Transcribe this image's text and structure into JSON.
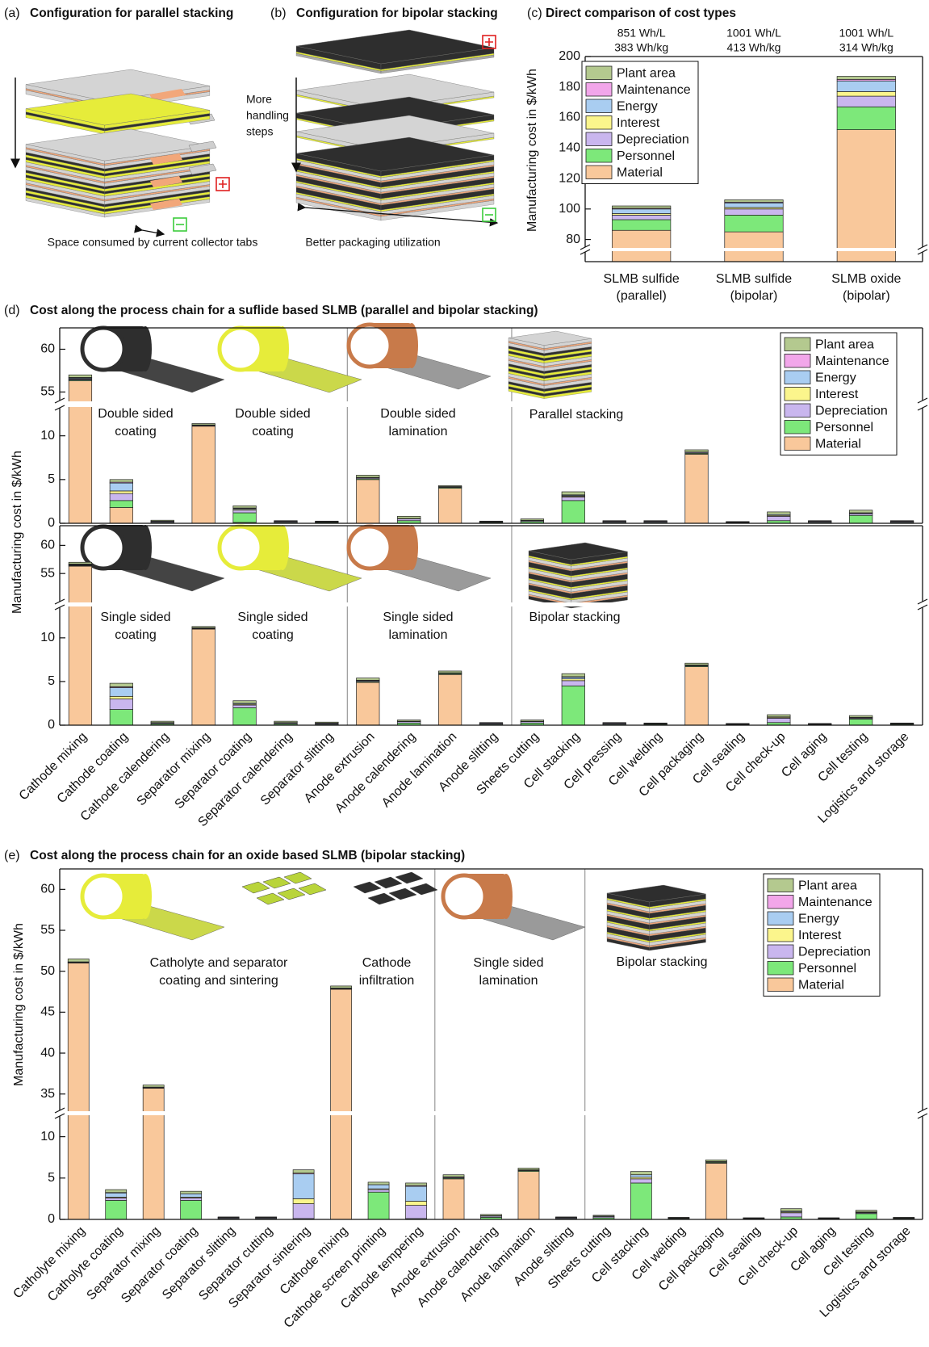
{
  "panel_a": {
    "label": "(a)",
    "title": "Configuration for parallel stacking",
    "caption": "Space consumed by current collector tabs"
  },
  "panel_b": {
    "label": "(b)",
    "title": "Configuration for bipolar stacking",
    "note": [
      "More",
      "handling",
      "steps"
    ],
    "caption": "Better packaging utilization"
  },
  "chart_data": [
    {
      "type": "bar",
      "stacked": true,
      "label": "(c)",
      "title": "Direct comparison of cost types",
      "ylabel": "Manufacturing cost in $/kWh",
      "categories": [
        [
          "SLMB sulfide",
          "(parallel)"
        ],
        [
          "SLMB sulfide",
          "(bipolar)"
        ],
        [
          "SLMB oxide",
          "(bipolar)"
        ]
      ],
      "annotations": [
        [
          "851 Wh/L",
          "383 Wh/kg"
        ],
        [
          "1001 Wh/L",
          "413 Wh/kg"
        ],
        [
          "1001 Wh/L",
          "314 Wh/kg"
        ]
      ],
      "axis_segments": [
        {
          "ylim": [
            0,
            5
          ],
          "yticks": []
        },
        {
          "ylim": [
            75,
            200
          ],
          "yticks": [
            80,
            100,
            120,
            140,
            160,
            180,
            200
          ]
        }
      ],
      "legend": "upper left",
      "series": [
        {
          "name": "Material",
          "color": "#f9c89b",
          "values": [
            86,
            85,
            152
          ]
        },
        {
          "name": "Personnel",
          "color": "#7de87a",
          "values": [
            7,
            11,
            15
          ]
        },
        {
          "name": "Depreciation",
          "color": "#c9b6ee",
          "values": [
            3,
            4,
            7
          ]
        },
        {
          "name": "Interest",
          "color": "#fbf58c",
          "values": [
            1,
            1,
            3
          ]
        },
        {
          "name": "Energy",
          "color": "#a9cdf1",
          "values": [
            3,
            3,
            7
          ]
        },
        {
          "name": "Maintenance",
          "color": "#f2a6ea",
          "values": [
            0.5,
            0.5,
            1
          ]
        },
        {
          "name": "Plant area",
          "color": "#b4c98f",
          "values": [
            1.5,
            1.5,
            2
          ]
        }
      ]
    },
    {
      "type": "bar",
      "stacked": true,
      "label": "(d)",
      "title": "Cost along the process chain for a suflide based SLMB (parallel and bipolar stacking)",
      "ylabel": "Manufacturing cost in $/kWh",
      "axis_segments": [
        {
          "ylim": [
            0,
            13.2
          ],
          "yticks": [
            0,
            5,
            10
          ]
        },
        {
          "ylim": [
            54,
            62.5
          ],
          "yticks": [
            55,
            60
          ]
        }
      ],
      "legend": "upper right",
      "group_boundaries": [
        7,
        11
      ],
      "insets": [
        [
          "Double sided",
          "coating"
        ],
        [
          "Double sided",
          "coating"
        ],
        [
          "Double sided",
          "lamination"
        ],
        [
          "Parallel stacking"
        ]
      ],
      "series": [
        {
          "name": "Material",
          "color": "#f9c89b",
          "values": [
            56.3,
            1.8,
            0,
            11.1,
            0.1,
            0,
            0,
            5.0,
            0,
            4.0,
            0,
            0,
            0,
            0,
            0,
            7.9,
            0,
            0,
            0,
            0,
            0
          ]
        },
        {
          "name": "Personnel",
          "color": "#7de87a",
          "values": [
            0.1,
            0.8,
            0.1,
            0.05,
            1.1,
            0.1,
            0.1,
            0.1,
            0.3,
            0.1,
            0.1,
            0.2,
            2.6,
            0.1,
            0.1,
            0.1,
            0.05,
            0.3,
            0.1,
            0.9,
            0.1
          ]
        },
        {
          "name": "Depreciation",
          "color": "#c9b6ee",
          "values": [
            0.1,
            0.8,
            0.1,
            0.05,
            0.3,
            0.1,
            0.05,
            0.1,
            0.2,
            0.05,
            0.05,
            0.1,
            0.4,
            0.1,
            0.1,
            0.1,
            0.05,
            0.5,
            0.1,
            0.2,
            0.1
          ]
        },
        {
          "name": "Interest",
          "color": "#fbf58c",
          "values": [
            0.05,
            0.3,
            0,
            0,
            0.1,
            0,
            0,
            0,
            0,
            0,
            0,
            0,
            0.1,
            0,
            0,
            0,
            0,
            0.1,
            0,
            0.05,
            0
          ]
        },
        {
          "name": "Energy",
          "color": "#a9cdf1",
          "values": [
            0.1,
            0.9,
            0.05,
            0.05,
            0.1,
            0.05,
            0.05,
            0.05,
            0.05,
            0.05,
            0.05,
            0.05,
            0.1,
            0.05,
            0.05,
            0.05,
            0.05,
            0.1,
            0.05,
            0.05,
            0.05
          ]
        },
        {
          "name": "Maintenance",
          "color": "#f2a6ea",
          "values": [
            0.05,
            0.1,
            0,
            0,
            0.05,
            0,
            0,
            0,
            0,
            0,
            0,
            0,
            0.05,
            0,
            0,
            0,
            0,
            0,
            0,
            0,
            0
          ]
        },
        {
          "name": "Plant area",
          "color": "#b4c98f",
          "values": [
            0.3,
            0.3,
            0.1,
            0.15,
            0.25,
            0.05,
            0.05,
            0.25,
            0.25,
            0.1,
            0.05,
            0.15,
            0.35,
            0.05,
            0.05,
            0.25,
            0.05,
            0.3,
            0.05,
            0.3,
            0.05
          ]
        }
      ]
    },
    {
      "type": "bar",
      "stacked": true,
      "categories": [
        "Cathode mixing",
        "Cathode coating",
        "Cathode calendering",
        "Separator mixing",
        "Separator coating",
        "Separator calendering",
        "Separator slitting",
        "Anode extrusion",
        "Anode calendering",
        "Anode lamination",
        "Anode slitting",
        "Sheets cutting",
        "Cell stacking",
        "Cell pressing",
        "Cell welding",
        "Cell packaging",
        "Cell sealing",
        "Cell check-up",
        "Cell aging",
        "Cell testing",
        "Logistics and storage"
      ],
      "xlabel_rotation": 45,
      "axis_segments": [
        {
          "ylim": [
            0,
            13.5
          ],
          "yticks": [
            0,
            5,
            10
          ]
        },
        {
          "ylim": [
            50,
            63.5
          ],
          "yticks": [
            55,
            60
          ]
        }
      ],
      "group_boundaries": [
        7,
        11
      ],
      "insets": [
        [
          "Single sided",
          "coating"
        ],
        [
          "Single sided",
          "coating"
        ],
        [
          "Single sided",
          "lamination"
        ],
        [
          "Bipolar stacking"
        ]
      ],
      "series": [
        {
          "color": "#f9c89b",
          "values": [
            56.3,
            0,
            0,
            11.0,
            0,
            0,
            0,
            4.9,
            0,
            5.8,
            0,
            0,
            0,
            0,
            0,
            6.7,
            0,
            0,
            0,
            0,
            0
          ]
        },
        {
          "color": "#7de87a",
          "values": [
            0.1,
            1.8,
            0.15,
            0.05,
            2.0,
            0.15,
            0.1,
            0.1,
            0.25,
            0.1,
            0.1,
            0.25,
            4.5,
            0.1,
            0.1,
            0.1,
            0.05,
            0.3,
            0.05,
            0.7,
            0.1
          ]
        },
        {
          "color": "#c9b6ee",
          "values": [
            0.1,
            1.2,
            0.1,
            0.05,
            0.3,
            0.1,
            0.1,
            0.1,
            0.15,
            0.05,
            0.1,
            0.15,
            0.6,
            0.1,
            0.05,
            0.05,
            0.05,
            0.5,
            0.05,
            0.1,
            0.05
          ]
        },
        {
          "color": "#fbf58c",
          "values": [
            0.05,
            0.3,
            0,
            0,
            0.1,
            0,
            0,
            0,
            0,
            0,
            0,
            0,
            0.2,
            0,
            0,
            0,
            0,
            0.1,
            0,
            0.05,
            0
          ]
        },
        {
          "color": "#a9cdf1",
          "values": [
            0.1,
            1.0,
            0.05,
            0.05,
            0.1,
            0.05,
            0.05,
            0.05,
            0.05,
            0.05,
            0.05,
            0.05,
            0.2,
            0.05,
            0.05,
            0.05,
            0.05,
            0.05,
            0.05,
            0.05,
            0.05
          ]
        },
        {
          "color": "#f2a6ea",
          "values": [
            0.05,
            0.1,
            0,
            0,
            0,
            0,
            0,
            0,
            0,
            0,
            0,
            0,
            0.05,
            0,
            0,
            0,
            0,
            0,
            0,
            0,
            0
          ]
        },
        {
          "color": "#b4c98f",
          "values": [
            0.3,
            0.4,
            0.15,
            0.15,
            0.3,
            0.15,
            0.1,
            0.25,
            0.15,
            0.2,
            0.05,
            0.15,
            0.35,
            0.05,
            0.05,
            0.2,
            0.05,
            0.25,
            0.05,
            0.2,
            0.05
          ]
        }
      ]
    },
    {
      "type": "bar",
      "stacked": true,
      "label": "(e)",
      "title": "Cost along the process chain for an oxide based SLMB (bipolar stacking)",
      "ylabel": "Manufacturing cost in $/kWh",
      "categories": [
        "Catholyte mixing",
        "Catholyte coating",
        "Separator mixing",
        "Separator coating",
        "Separator slitting",
        "Separator cutting",
        "Separator sintering",
        "Cathode mixing",
        "Cathode screen printing",
        "Cathode tempering",
        "Anode extrusion",
        "Anode calendering",
        "Anode lamination",
        "Anode slitting",
        "Sheets cutting",
        "Cell stacking",
        "Cell welding",
        "Cell packaging",
        "Cell sealing",
        "Cell check-up",
        "Cell aging",
        "Cell testing",
        "Logistics and storage"
      ],
      "xlabel_rotation": 45,
      "axis_segments": [
        {
          "ylim": [
            0,
            12.5
          ],
          "yticks": [
            0,
            5,
            10
          ]
        },
        {
          "ylim": [
            33,
            62.5
          ],
          "yticks": [
            35,
            40,
            45,
            50,
            55,
            60
          ]
        }
      ],
      "legend": "upper right",
      "group_boundaries": [
        10,
        14
      ],
      "insets": [
        [
          "Catholyte and separator",
          "coating and sintering"
        ],
        [
          "Cathode",
          "infiltration"
        ],
        [
          "Single sided",
          "lamination"
        ],
        [
          "Bipolar stacking"
        ]
      ],
      "series": [
        {
          "name": "Material",
          "color": "#f9c89b",
          "values": [
            51.0,
            0,
            35.7,
            0,
            0,
            0,
            0,
            47.8,
            0,
            0,
            4.9,
            0,
            5.8,
            0,
            0,
            0,
            0,
            6.8,
            0,
            0,
            0,
            0,
            0
          ]
        },
        {
          "name": "Personnel",
          "color": "#7de87a",
          "values": [
            0.05,
            2.3,
            0.05,
            2.3,
            0.1,
            0.1,
            0.1,
            0.05,
            3.3,
            0.1,
            0.1,
            0.25,
            0.1,
            0.1,
            0.2,
            4.4,
            0.1,
            0.1,
            0.05,
            0.3,
            0.05,
            0.7,
            0.1
          ]
        },
        {
          "name": "Depreciation",
          "color": "#c9b6ee",
          "values": [
            0.05,
            0.3,
            0.05,
            0.3,
            0.1,
            0.1,
            1.8,
            0.05,
            0.3,
            1.6,
            0.1,
            0.15,
            0.05,
            0.1,
            0.15,
            0.5,
            0.05,
            0.05,
            0.05,
            0.5,
            0.05,
            0.1,
            0.05
          ]
        },
        {
          "name": "Interest",
          "color": "#fbf58c",
          "values": [
            0,
            0.1,
            0,
            0.1,
            0,
            0,
            0.6,
            0,
            0.1,
            0.5,
            0,
            0,
            0,
            0,
            0,
            0.2,
            0,
            0,
            0,
            0.1,
            0,
            0.05,
            0
          ]
        },
        {
          "name": "Energy",
          "color": "#a9cdf1",
          "values": [
            0.05,
            0.5,
            0.05,
            0.4,
            0.05,
            0.05,
            3.0,
            0.05,
            0.5,
            1.8,
            0.05,
            0.05,
            0.05,
            0.05,
            0.05,
            0.3,
            0.05,
            0.05,
            0.05,
            0.1,
            0.05,
            0.05,
            0.05
          ]
        },
        {
          "name": "Maintenance",
          "color": "#f2a6ea",
          "values": [
            0,
            0.05,
            0,
            0,
            0,
            0,
            0.1,
            0,
            0,
            0.1,
            0,
            0,
            0,
            0,
            0,
            0,
            0,
            0,
            0,
            0,
            0,
            0,
            0
          ]
        },
        {
          "name": "Plant area",
          "color": "#b4c98f",
          "values": [
            0.35,
            0.35,
            0.25,
            0.3,
            0.05,
            0.05,
            0.4,
            0.25,
            0.3,
            0.3,
            0.25,
            0.15,
            0.2,
            0.05,
            0.1,
            0.4,
            0.05,
            0.2,
            0.05,
            0.3,
            0.05,
            0.2,
            0.05
          ]
        }
      ]
    }
  ]
}
